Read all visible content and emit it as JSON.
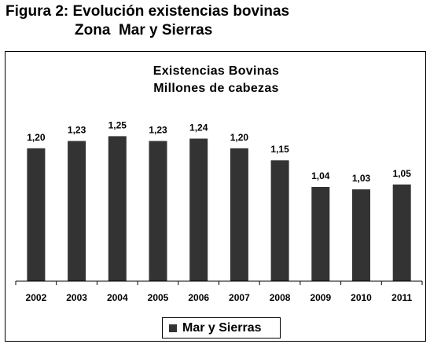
{
  "figure": {
    "title_line1": "Figura 2: Evolución existencias bovinas",
    "title_line2": "Zona  Mar y Sierras"
  },
  "chart_data": {
    "type": "bar",
    "title": "Existencias Bovinas",
    "subtitle": "Millones de cabezas",
    "categories": [
      "2002",
      "2003",
      "2004",
      "2005",
      "2006",
      "2007",
      "2008",
      "2009",
      "2010",
      "2011"
    ],
    "series": [
      {
        "name": "Mar y Sierras",
        "values": [
          1.2,
          1.23,
          1.25,
          1.23,
          1.24,
          1.2,
          1.15,
          1.04,
          1.03,
          1.05
        ],
        "labels": [
          "1,20",
          "1,23",
          "1,25",
          "1,23",
          "1,24",
          "1,20",
          "1,15",
          "1,04",
          "1,03",
          "1,05"
        ],
        "color": "#333333"
      }
    ],
    "ylim": [
      0.65,
      1.3
    ],
    "y_axis_visible": false,
    "grid": false,
    "legend_position": "bottom"
  }
}
